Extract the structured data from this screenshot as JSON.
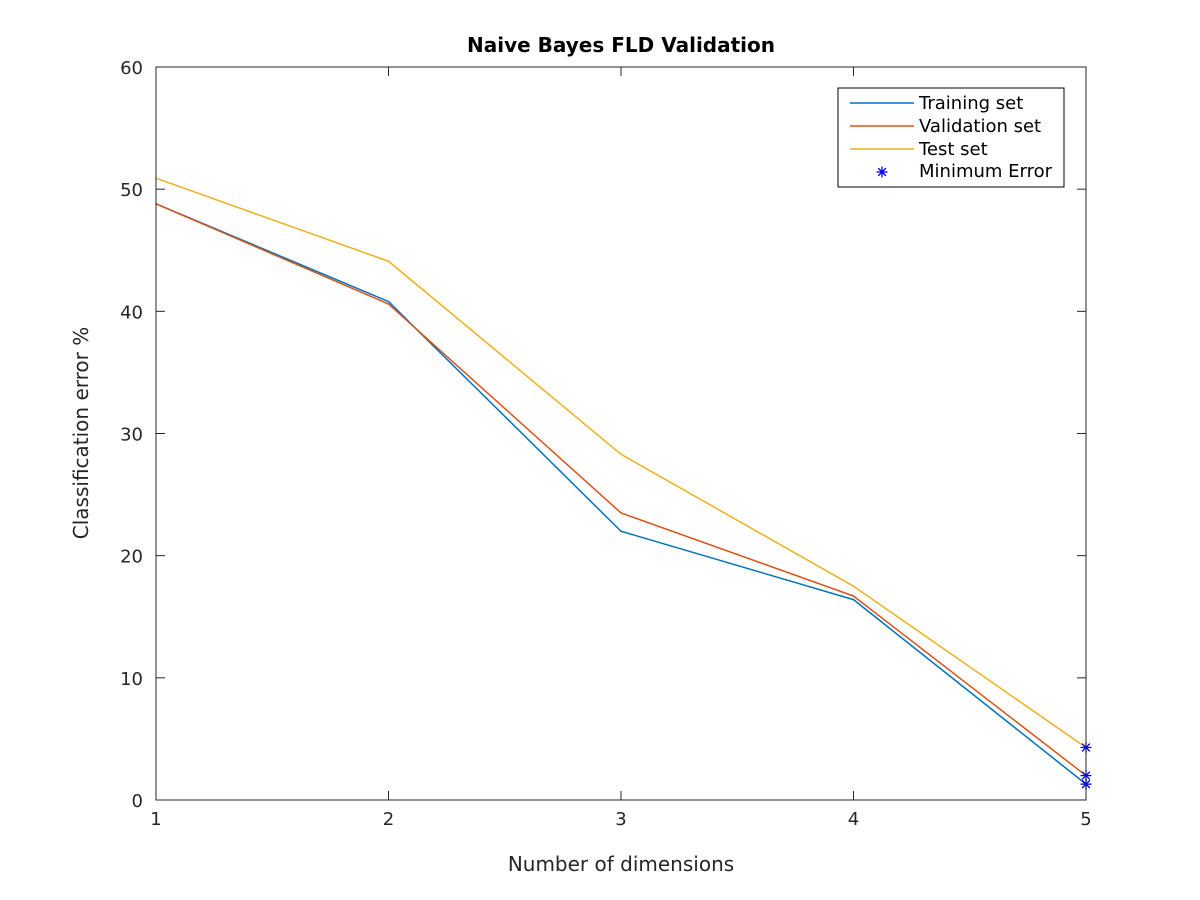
{
  "chart_data": {
    "type": "line",
    "title": "Naive Bayes FLD Validation",
    "xlabel": "Number of dimensions",
    "ylabel": "Classification error %",
    "x": [
      1,
      2,
      3,
      4,
      5
    ],
    "xlim": [
      1,
      5
    ],
    "ylim": [
      0,
      60
    ],
    "xticks": [
      "1",
      "2",
      "3",
      "4",
      "5"
    ],
    "yticks": [
      "0",
      "10",
      "20",
      "30",
      "40",
      "50",
      "60"
    ],
    "grid": false,
    "legend_position": "top-right",
    "series": [
      {
        "name": "Training set",
        "color": "#0072bd",
        "values": [
          48.8,
          40.8,
          22.0,
          16.4,
          1.3
        ]
      },
      {
        "name": "Validation set",
        "color": "#d95319",
        "values": [
          48.8,
          40.6,
          23.5,
          16.7,
          2.0
        ]
      },
      {
        "name": "Test set",
        "color": "#edb120",
        "values": [
          50.9,
          44.1,
          28.3,
          17.5,
          4.3
        ]
      }
    ],
    "markers": {
      "name": "Minimum Error",
      "color": "#0000ff",
      "symbol": "*",
      "points": [
        {
          "x": 5,
          "y": 1.3
        },
        {
          "x": 5,
          "y": 2.0
        },
        {
          "x": 5,
          "y": 4.3
        }
      ]
    }
  }
}
